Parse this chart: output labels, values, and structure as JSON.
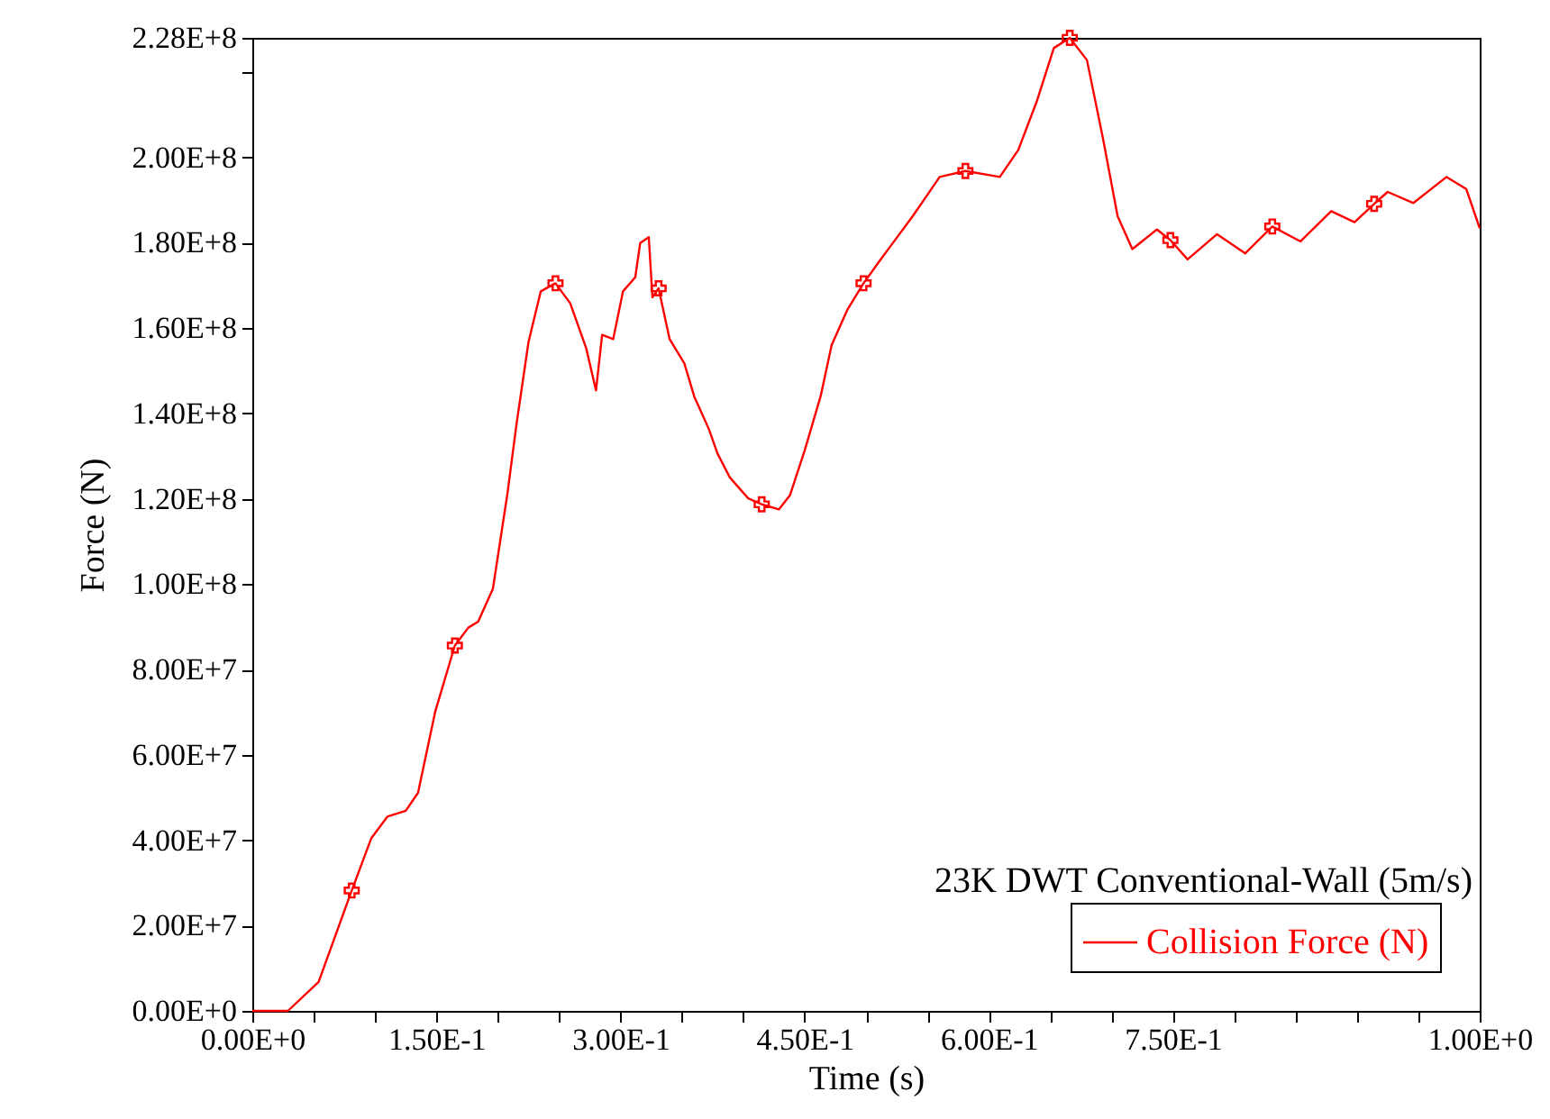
{
  "chart_data": {
    "type": "line",
    "annotations": [
      "23K DWT Conventional-Wall (5m/s)"
    ],
    "xlabel": "Time (s)",
    "ylabel": "Force (N)",
    "xlim": [
      0,
      1
    ],
    "ylim": [
      0,
      228000000.0
    ],
    "xticks": [
      {
        "value": 0,
        "label": "0.00E+0"
      },
      {
        "value": 0.05,
        "label": null
      },
      {
        "value": 0.1,
        "label": null
      },
      {
        "value": 0.15,
        "label": "1.50E-1"
      },
      {
        "value": 0.2,
        "label": null
      },
      {
        "value": 0.25,
        "label": null
      },
      {
        "value": 0.3,
        "label": "3.00E-1"
      },
      {
        "value": 0.35,
        "label": null
      },
      {
        "value": 0.4,
        "label": null
      },
      {
        "value": 0.45,
        "label": "4.50E-1"
      },
      {
        "value": 0.5,
        "label": null
      },
      {
        "value": 0.55,
        "label": null
      },
      {
        "value": 0.6,
        "label": "6.00E-1"
      },
      {
        "value": 0.65,
        "label": null
      },
      {
        "value": 0.7,
        "label": null
      },
      {
        "value": 0.75,
        "label": "7.50E-1"
      },
      {
        "value": 0.8,
        "label": null
      },
      {
        "value": 0.85,
        "label": null
      },
      {
        "value": 0.9,
        "label": null
      },
      {
        "value": 0.95,
        "label": null
      },
      {
        "value": 1,
        "label": "1.00E+0"
      }
    ],
    "yticks": [
      {
        "value": 0,
        "label": "0.00E+0"
      },
      {
        "value": 20000000.0,
        "label": "2.00E+7"
      },
      {
        "value": 40000000.0,
        "label": "4.00E+7"
      },
      {
        "value": 60000000.0,
        "label": "6.00E+7"
      },
      {
        "value": 80000000.0,
        "label": "8.00E+7"
      },
      {
        "value": 100000000.0,
        "label": "1.00E+8"
      },
      {
        "value": 120000000.0,
        "label": "1.20E+8"
      },
      {
        "value": 140000000.0,
        "label": "1.40E+8"
      },
      {
        "value": 160000000.0,
        "label": "1.60E+8"
      },
      {
        "value": 180000000.0,
        "label": "1.80E+8"
      },
      {
        "value": 200000000.0,
        "label": "2.00E+8"
      },
      {
        "value": 220000000.0,
        "label": null
      },
      {
        "value": 228000000.0,
        "label": "2.28E+8"
      }
    ],
    "grid": false,
    "legend": "bottom right",
    "series": [
      {
        "name": "Collision Force (N)",
        "color": "#ff0000",
        "marker": "none",
        "x": [
          0,
          0.029,
          0.054,
          0.081,
          0.097,
          0.11,
          0.125,
          0.135,
          0.149,
          0.165,
          0.176,
          0.184,
          0.196,
          0.208,
          0.215,
          0.225,
          0.235,
          0.247,
          0.259,
          0.272,
          0.28,
          0.285,
          0.294,
          0.302,
          0.312,
          0.316,
          0.323,
          0.326,
          0.331,
          0.34,
          0.352,
          0.36,
          0.372,
          0.379,
          0.389,
          0.404,
          0.415,
          0.429,
          0.438,
          0.45,
          0.463,
          0.472,
          0.485,
          0.498,
          0.511,
          0.52,
          0.538,
          0.56,
          0.581,
          0.609,
          0.624,
          0.639,
          0.653,
          0.666,
          0.68,
          0.693,
          0.705,
          0.717,
          0.737,
          0.748,
          0.762,
          0.786,
          0.809,
          0.831,
          0.854,
          0.879,
          0.898,
          0.914,
          0.925,
          0.946,
          0.973,
          0.989,
          1.0
        ],
        "values": [
          0,
          0,
          6800000.0,
          28200000.0,
          40500000.0,
          45500000.0,
          46900000.0,
          51100000.0,
          70100000.0,
          85600000.0,
          89800000.0,
          91200000.0,
          98900000.0,
          121500000.0,
          137000000.0,
          156700000.0,
          168600000.0,
          170500000.0,
          165800000.0,
          155300000.0,
          145400000.0,
          158400000.0,
          157400000.0,
          168600000.0,
          171900000.0,
          179900000.0,
          181300000.0,
          167200000.0,
          169300000.0,
          157400000.0,
          151700000.0,
          144000000.0,
          136300000.0,
          130600000.0,
          125000000.0,
          120100000.0,
          118700000.0,
          117500000.0,
          120800000.0,
          131300000.0,
          144000000.0,
          156000000.0,
          164400000.0,
          170500000.0,
          175700000.0,
          179200000.0,
          186200000.0,
          195400000.0,
          196800000.0,
          195400000.0,
          201700000.0,
          213000000.0,
          225600000.0,
          228000000.0,
          222800000.0,
          204500000.0,
          186200000.0,
          178500000.0,
          183100000.0,
          180600000.0,
          176100000.0,
          182000000.0,
          177500000.0,
          183800000.0,
          180300000.0,
          187400000.0,
          184800000.0,
          189100000.0,
          191900000.0,
          189300000.0,
          195400000.0,
          192600000.0,
          183400000.0
        ]
      },
      {
        "type": "scatter",
        "color": "#ff0000",
        "marker": "cross",
        "x": [
          0.081,
          0.165,
          0.247,
          0.331,
          0.415,
          0.498,
          0.581,
          0.666,
          0.748,
          0.831,
          0.914
        ],
        "values": [
          28200000.0,
          85600000.0,
          170500000.0,
          169300000.0,
          118700000.0,
          170500000.0,
          196800000.0,
          228000000.0,
          180600000.0,
          183800000.0,
          189100000.0
        ]
      }
    ]
  }
}
